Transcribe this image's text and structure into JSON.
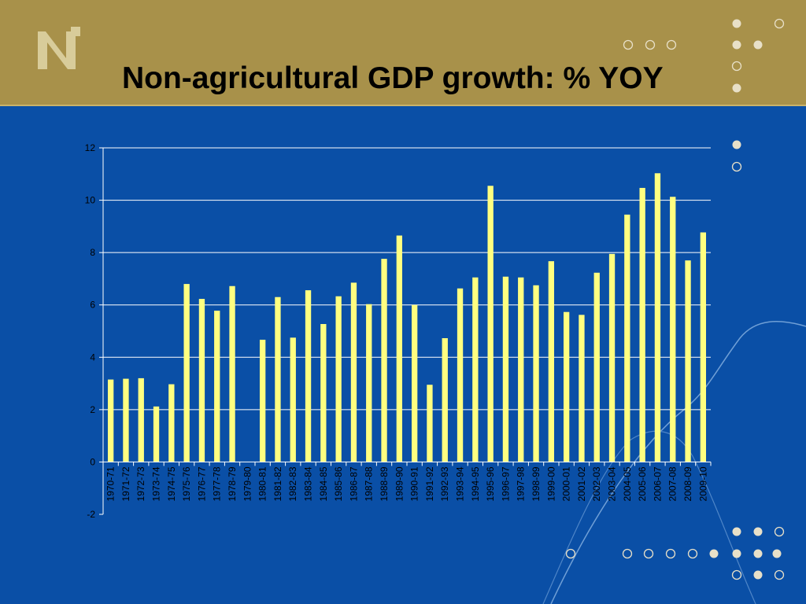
{
  "slide": {
    "title": "Non-agricultural GDP growth: % YOY",
    "logo_icon": "n-logo-icon",
    "colors": {
      "background": "#0a4fa6",
      "header": "#a8914a",
      "bar": "#ffff80",
      "gridline": "#ffffff",
      "dot": "#e8e0c8"
    }
  },
  "chart_data": {
    "type": "bar",
    "title": "Non-agricultural GDP growth: % YOY",
    "xlabel": "",
    "ylabel": "",
    "ylim": [
      -2,
      12
    ],
    "yticks": [
      -2,
      0,
      2,
      4,
      6,
      8,
      10,
      12
    ],
    "grid": true,
    "legend": "none",
    "categories": [
      "1970-71",
      "1971-72",
      "1972-73",
      "1973-74",
      "1974-75",
      "1975-76",
      "1976-77",
      "1977-78",
      "1978-79",
      "1979-80",
      "1980-81",
      "1981-82",
      "1982-83",
      "1983-84",
      "1984-85",
      "1985-86",
      "1986-87",
      "1987-88",
      "1988-89",
      "1989-90",
      "1990-91",
      "1991-92",
      "1992-93",
      "1993-94",
      "1994-95",
      "1995-96",
      "1996-97",
      "1997-98",
      "1998-99",
      "1999-00",
      "2000-01",
      "2001-02",
      "2002-03",
      "2003-04",
      "2004-05",
      "2005-06",
      "2006-07",
      "2007-08",
      "2008-09",
      "2009-10"
    ],
    "values": [
      3.15,
      3.18,
      3.2,
      2.12,
      2.97,
      6.8,
      6.23,
      5.78,
      6.72,
      null,
      4.67,
      6.3,
      4.75,
      6.56,
      5.27,
      6.33,
      6.85,
      6.03,
      7.76,
      8.65,
      6.0,
      2.95,
      4.73,
      6.63,
      7.05,
      10.55,
      7.08,
      7.05,
      6.75,
      7.67,
      5.73,
      5.62,
      7.23,
      7.95,
      9.45,
      10.47,
      11.03,
      10.13,
      7.7,
      8.77
    ]
  }
}
